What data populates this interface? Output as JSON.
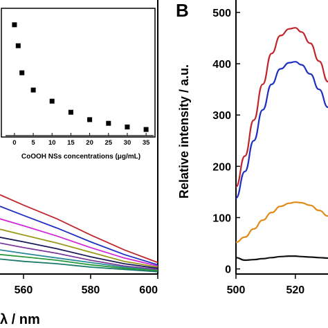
{
  "chart_data": [
    {
      "panel": "A",
      "type": "line",
      "xlabel": "λ / nm",
      "x_ticks": [
        560,
        580,
        600
      ],
      "xlim": [
        553,
        600
      ],
      "ylim": [
        0,
        1
      ],
      "series": [
        {
          "color": "#c0262c",
          "x": [
            553,
            560,
            570,
            580,
            590,
            600
          ],
          "y": [
            0.69,
            0.6,
            0.48,
            0.34,
            0.21,
            0.1
          ]
        },
        {
          "color": "#1f2fbf",
          "x": [
            553,
            560,
            570,
            580,
            590,
            600
          ],
          "y": [
            0.59,
            0.51,
            0.4,
            0.28,
            0.17,
            0.08
          ]
        },
        {
          "color": "#d028d8",
          "x": [
            553,
            560,
            570,
            580,
            590,
            600
          ],
          "y": [
            0.48,
            0.42,
            0.33,
            0.23,
            0.14,
            0.07
          ]
        },
        {
          "color": "#9a9a1a",
          "x": [
            553,
            560,
            570,
            580,
            590,
            600
          ],
          "y": [
            0.39,
            0.34,
            0.27,
            0.19,
            0.11,
            0.06
          ]
        },
        {
          "color": "#1a1a5a",
          "x": [
            553,
            560,
            570,
            580,
            590,
            600
          ],
          "y": [
            0.32,
            0.28,
            0.22,
            0.15,
            0.09,
            0.05
          ]
        },
        {
          "color": "#7a3a9a",
          "x": [
            553,
            560,
            570,
            580,
            590,
            600
          ],
          "y": [
            0.27,
            0.23,
            0.18,
            0.12,
            0.07,
            0.04
          ]
        },
        {
          "color": "#2a8a9a",
          "x": [
            553,
            560,
            570,
            580,
            590,
            600
          ],
          "y": [
            0.21,
            0.18,
            0.14,
            0.1,
            0.06,
            0.03
          ]
        },
        {
          "color": "#2a9a3a",
          "x": [
            553,
            560,
            570,
            580,
            590,
            600
          ],
          "y": [
            0.17,
            0.15,
            0.12,
            0.08,
            0.05,
            0.03
          ]
        },
        {
          "color": "#1a7a6a",
          "x": [
            553,
            560,
            570,
            580,
            590,
            600
          ],
          "y": [
            0.13,
            0.11,
            0.09,
            0.06,
            0.04,
            0.02
          ]
        }
      ]
    },
    {
      "panel": "A-inset",
      "type": "scatter",
      "xlabel": "CoOOH NSs concentrations (μg/mL)",
      "x_ticks": [
        0,
        5,
        10,
        15,
        20,
        25,
        30,
        35
      ],
      "xlim": [
        -2,
        37
      ],
      "ylim": [
        0,
        1
      ],
      "points": [
        {
          "x": 0,
          "y": 0.9
        },
        {
          "x": 1,
          "y": 0.73
        },
        {
          "x": 2,
          "y": 0.51
        },
        {
          "x": 5,
          "y": 0.37
        },
        {
          "x": 10,
          "y": 0.28
        },
        {
          "x": 15,
          "y": 0.19
        },
        {
          "x": 20,
          "y": 0.13
        },
        {
          "x": 25,
          "y": 0.1
        },
        {
          "x": 30,
          "y": 0.07
        },
        {
          "x": 35,
          "y": 0.05
        }
      ]
    },
    {
      "panel": "B",
      "label": "B",
      "type": "line",
      "ylabel": "Relative intensity / a.u.",
      "x_ticks": [
        500,
        520
      ],
      "y_ticks": [
        0,
        100,
        200,
        300,
        400,
        500
      ],
      "xlim": [
        500,
        531
      ],
      "ylim": [
        -10,
        500
      ],
      "series": [
        {
          "color": "#c0262c",
          "x": [
            500,
            503,
            506,
            509,
            512,
            515,
            518,
            520,
            522,
            525,
            528,
            531
          ],
          "y": [
            160,
            220,
            290,
            360,
            420,
            455,
            468,
            470,
            462,
            440,
            405,
            365
          ]
        },
        {
          "color": "#1f2fbf",
          "x": [
            500,
            503,
            506,
            509,
            512,
            515,
            518,
            520,
            522,
            525,
            528,
            531
          ],
          "y": [
            138,
            190,
            250,
            310,
            360,
            390,
            402,
            404,
            398,
            380,
            350,
            315
          ]
        },
        {
          "color": "#e08a18",
          "x": [
            500,
            503,
            506,
            509,
            512,
            515,
            518,
            520,
            522,
            525,
            528,
            531
          ],
          "y": [
            52,
            62,
            78,
            95,
            110,
            122,
            128,
            130,
            129,
            124,
            114,
            103
          ]
        },
        {
          "color": "#111111",
          "x": [
            500,
            503,
            506,
            509,
            512,
            515,
            518,
            520,
            522,
            525,
            528,
            531
          ],
          "y": [
            22,
            17,
            18,
            20,
            22,
            24,
            25,
            25,
            24,
            23,
            22,
            21
          ]
        }
      ]
    }
  ]
}
